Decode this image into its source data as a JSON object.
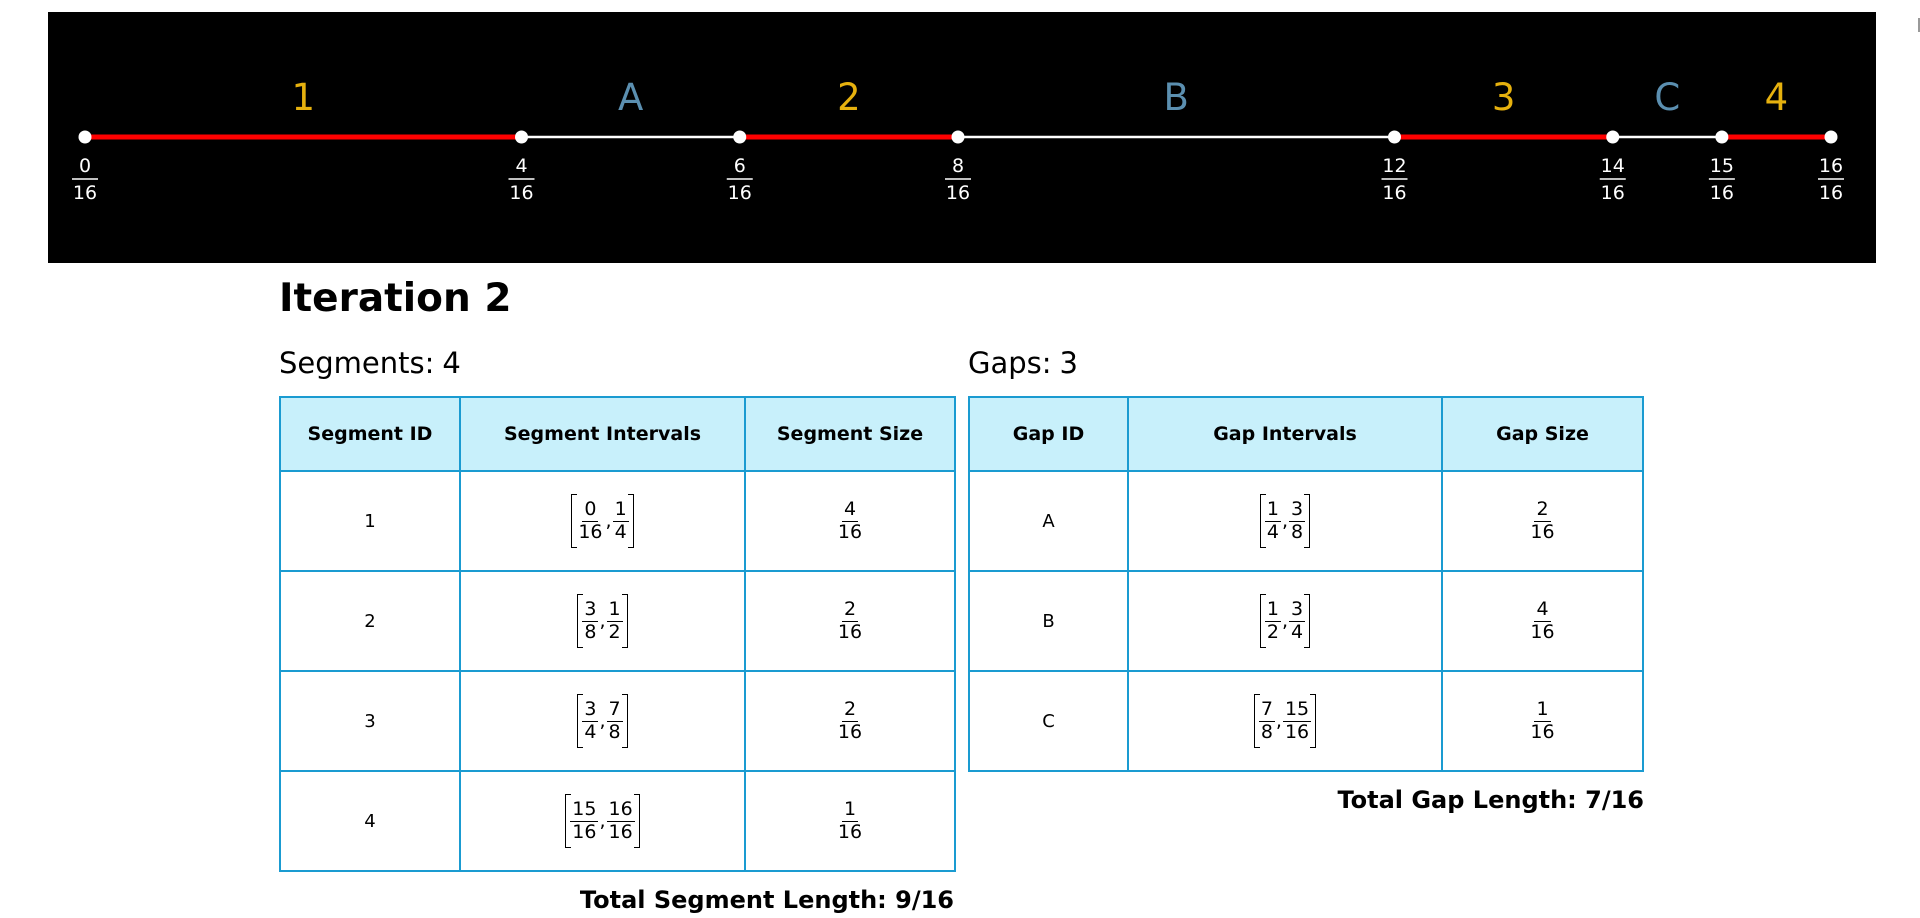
{
  "number_line": {
    "points": [
      {
        "value": 0,
        "num": "0",
        "den": "16"
      },
      {
        "value": 4,
        "num": "4",
        "den": "16"
      },
      {
        "value": 6,
        "num": "6",
        "den": "16"
      },
      {
        "value": 8,
        "num": "8",
        "den": "16"
      },
      {
        "value": 12,
        "num": "12",
        "den": "16"
      },
      {
        "value": 14,
        "num": "14",
        "den": "16"
      },
      {
        "value": 15,
        "num": "15",
        "den": "16"
      },
      {
        "value": 16,
        "num": "16",
        "den": "16"
      }
    ],
    "denominator": 16,
    "segments": [
      {
        "label": "1",
        "from": 0,
        "to": 4
      },
      {
        "label": "2",
        "from": 6,
        "to": 8
      },
      {
        "label": "3",
        "from": 12,
        "to": 14
      },
      {
        "label": "4",
        "from": 15,
        "to": 16
      }
    ],
    "gaps": [
      {
        "label": "A",
        "from": 4,
        "to": 6
      },
      {
        "label": "B",
        "from": 8,
        "to": 12
      },
      {
        "label": "C",
        "from": 14,
        "to": 15
      }
    ],
    "colors": {
      "background": "#000000",
      "segment_line": "#ff0000",
      "gap_line": "#ffffff",
      "segment_label": "#e6b10e",
      "gap_label": "#5b8fb0",
      "point": "#ffffff",
      "tick_text": "#ffffff"
    }
  },
  "iteration": {
    "label": "Iteration",
    "number": "2"
  },
  "segments_table": {
    "caption_label": "Segments:",
    "count": "4",
    "headers": [
      "Segment ID",
      "Segment Intervals",
      "Segment Size"
    ],
    "rows": [
      {
        "id": "1",
        "a_num": "0",
        "a_den": "16",
        "b_num": "1",
        "b_den": "4",
        "size_num": "4",
        "size_den": "16"
      },
      {
        "id": "2",
        "a_num": "3",
        "a_den": "8",
        "b_num": "1",
        "b_den": "2",
        "size_num": "2",
        "size_den": "16"
      },
      {
        "id": "3",
        "a_num": "3",
        "a_den": "4",
        "b_num": "7",
        "b_den": "8",
        "size_num": "2",
        "size_den": "16"
      },
      {
        "id": "4",
        "a_num": "15",
        "a_den": "16",
        "b_num": "16",
        "b_den": "16",
        "size_num": "1",
        "size_den": "16"
      }
    ],
    "total": "Total Segment Length: 9/16"
  },
  "gaps_table": {
    "caption_label": "Gaps:",
    "count": "3",
    "headers": [
      "Gap ID",
      "Gap Intervals",
      "Gap Size"
    ],
    "rows": [
      {
        "id": "A",
        "a_num": "1",
        "a_den": "4",
        "b_num": "3",
        "b_den": "8",
        "size_num": "2",
        "size_den": "16"
      },
      {
        "id": "B",
        "a_num": "1",
        "a_den": "2",
        "b_num": "3",
        "b_den": "4",
        "size_num": "4",
        "size_den": "16"
      },
      {
        "id": "C",
        "a_num": "7",
        "a_den": "8",
        "b_num": "15",
        "b_den": "16",
        "size_num": "1",
        "size_den": "16"
      }
    ],
    "total": "Total Gap Length: 7/16"
  },
  "table_colors": {
    "border": "#1a9bd1",
    "header_bg": "#c8f0fb"
  }
}
